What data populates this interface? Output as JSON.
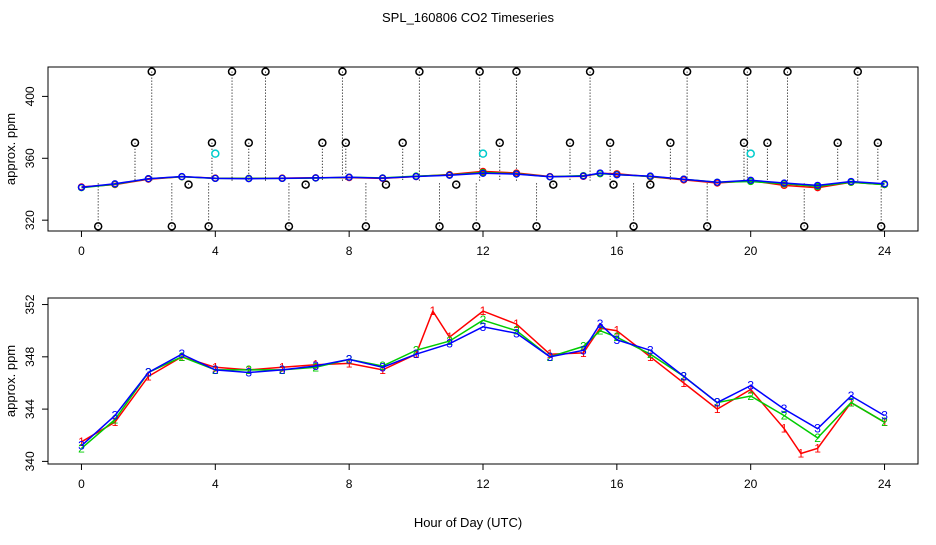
{
  "chart_data": [
    {
      "type": "scatter",
      "title": "SPL_160806  CO2 Timeseries",
      "ylabel": "approx. ppm",
      "xlabel": "",
      "xlim": [
        -1,
        25
      ],
      "ylim": [
        313,
        419
      ],
      "xticks": [
        0,
        4,
        8,
        12,
        16,
        20,
        24
      ],
      "yticks": [
        320,
        360,
        400
      ],
      "series": [
        {
          "name": "1",
          "color": "#ff0000",
          "points": [
            [
              0.0,
              341.5
            ],
            [
              1.0,
              343.0
            ],
            [
              2.0,
              346.5
            ],
            [
              3.0,
              348.0
            ],
            [
              4.0,
              347.2
            ],
            [
              5.0,
              347.0
            ],
            [
              6.0,
              347.2
            ],
            [
              7.0,
              347.4
            ],
            [
              8.0,
              347.5
            ],
            [
              9.0,
              347.0
            ],
            [
              10.0,
              348.2
            ],
            [
              11.0,
              349.5
            ],
            [
              12.0,
              351.5
            ],
            [
              13.0,
              350.5
            ],
            [
              14.0,
              348.2
            ],
            [
              15.0,
              348.3
            ],
            [
              15.5,
              350.2
            ],
            [
              16.0,
              350.0
            ],
            [
              17.0,
              348.0
            ],
            [
              18.0,
              346.0
            ],
            [
              19.0,
              344.0
            ],
            [
              20.0,
              345.5
            ],
            [
              21.0,
              342.5
            ],
            [
              22.0,
              341.0
            ],
            [
              23.0,
              344.5
            ],
            [
              24.0,
              343.0
            ]
          ]
        },
        {
          "name": "2",
          "color": "#00cc00",
          "points": [
            [
              0.0,
              341.0
            ],
            [
              1.0,
              343.2
            ],
            [
              2.0,
              346.8
            ],
            [
              3.0,
              348.0
            ],
            [
              4.0,
              347.0
            ],
            [
              5.0,
              347.0
            ],
            [
              6.0,
              347.0
            ],
            [
              7.0,
              347.2
            ],
            [
              8.0,
              347.8
            ],
            [
              9.0,
              347.3
            ],
            [
              10.0,
              348.5
            ],
            [
              11.0,
              349.2
            ],
            [
              12.0,
              350.8
            ],
            [
              13.0,
              350.0
            ],
            [
              14.0,
              348.0
            ],
            [
              15.0,
              348.8
            ],
            [
              15.5,
              350.0
            ],
            [
              16.0,
              349.5
            ],
            [
              17.0,
              348.2
            ],
            [
              18.0,
              346.5
            ],
            [
              19.0,
              344.5
            ],
            [
              20.0,
              345.0
            ],
            [
              21.0,
              343.5
            ],
            [
              22.0,
              341.8
            ],
            [
              23.0,
              344.5
            ],
            [
              24.0,
              343.0
            ]
          ]
        },
        {
          "name": "3",
          "color": "#0000ff",
          "points": [
            [
              0.0,
              341.2
            ],
            [
              1.0,
              343.5
            ],
            [
              2.0,
              346.8
            ],
            [
              3.0,
              348.2
            ],
            [
              4.0,
              347.0
            ],
            [
              5.0,
              346.8
            ],
            [
              6.0,
              347.0
            ],
            [
              7.0,
              347.3
            ],
            [
              8.0,
              347.8
            ],
            [
              9.0,
              347.2
            ],
            [
              10.0,
              348.2
            ],
            [
              11.0,
              349.0
            ],
            [
              12.0,
              350.3
            ],
            [
              13.0,
              349.8
            ],
            [
              14.0,
              348.0
            ],
            [
              15.0,
              348.5
            ],
            [
              15.5,
              350.5
            ],
            [
              16.0,
              349.3
            ],
            [
              17.0,
              348.5
            ],
            [
              18.0,
              346.5
            ],
            [
              19.0,
              344.5
            ],
            [
              20.0,
              345.8
            ],
            [
              21.0,
              344.0
            ],
            [
              22.0,
              342.5
            ],
            [
              23.0,
              345.0
            ],
            [
              24.0,
              343.5
            ]
          ]
        }
      ],
      "outliers": {
        "color": "#000000",
        "x": [
          0.5,
          1.6,
          2.1,
          2.7,
          3.2,
          3.8,
          3.9,
          4.5,
          5.0,
          5.5,
          6.2,
          6.7,
          7.2,
          7.8,
          7.9,
          8.5,
          9.1,
          9.6,
          10.1,
          10.7,
          11.2,
          11.8,
          11.9,
          12.5,
          13.0,
          13.6,
          14.1,
          14.6,
          15.2,
          15.8,
          15.9,
          16.5,
          17.0,
          17.6,
          18.1,
          18.7,
          19.8,
          19.9,
          20.5,
          21.1,
          21.6,
          22.6,
          23.2,
          23.8,
          23.9
        ],
        "y": [
          316,
          370,
          416,
          316,
          343,
          316,
          370,
          416,
          370,
          416,
          316,
          343,
          370,
          416,
          370,
          316,
          343,
          370,
          416,
          316,
          343,
          316,
          416,
          370,
          416,
          316,
          343,
          370,
          416,
          370,
          343,
          316,
          343,
          370,
          416,
          316,
          370,
          416,
          370,
          416,
          316,
          370,
          416,
          370,
          316
        ]
      },
      "flagged": {
        "color": "#00cccc",
        "x": [
          4.0,
          12.0,
          20.0
        ],
        "y": [
          363,
          363,
          363
        ]
      }
    },
    {
      "type": "scatter",
      "title": "",
      "ylabel": "approx. ppm",
      "xlabel": "Hour of Day (UTC)",
      "xlim": [
        -1,
        25
      ],
      "ylim": [
        339.8,
        352.5
      ],
      "xticks": [
        0,
        4,
        8,
        12,
        16,
        20,
        24
      ],
      "yticks": [
        340,
        344,
        348,
        352
      ],
      "series_marker_labels": [
        "1",
        "2",
        "3"
      ],
      "series": [
        {
          "name": "1",
          "color": "#ff0000",
          "points": [
            [
              0.0,
              341.5
            ],
            [
              1.0,
              343.0
            ],
            [
              2.0,
              346.5
            ],
            [
              3.0,
              348.0
            ],
            [
              4.0,
              347.2
            ],
            [
              5.0,
              347.0
            ],
            [
              6.0,
              347.2
            ],
            [
              7.0,
              347.4
            ],
            [
              8.0,
              347.5
            ],
            [
              9.0,
              347.0
            ],
            [
              10.0,
              348.2
            ],
            [
              10.5,
              351.5
            ],
            [
              11.0,
              349.5
            ],
            [
              12.0,
              351.5
            ],
            [
              13.0,
              350.5
            ],
            [
              14.0,
              348.2
            ],
            [
              15.0,
              348.3
            ],
            [
              15.5,
              350.2
            ],
            [
              16.0,
              350.0
            ],
            [
              17.0,
              348.0
            ],
            [
              18.0,
              346.0
            ],
            [
              19.0,
              344.0
            ],
            [
              20.0,
              345.5
            ],
            [
              21.0,
              342.5
            ],
            [
              21.5,
              340.6
            ],
            [
              22.0,
              341.0
            ],
            [
              23.0,
              344.5
            ],
            [
              24.0,
              343.0
            ]
          ]
        },
        {
          "name": "2",
          "color": "#00cc00",
          "points": [
            [
              0.0,
              341.0
            ],
            [
              1.0,
              343.2
            ],
            [
              2.0,
              346.8
            ],
            [
              3.0,
              348.0
            ],
            [
              4.0,
              347.0
            ],
            [
              5.0,
              347.0
            ],
            [
              6.0,
              347.0
            ],
            [
              7.0,
              347.2
            ],
            [
              8.0,
              347.8
            ],
            [
              9.0,
              347.3
            ],
            [
              10.0,
              348.5
            ],
            [
              11.0,
              349.2
            ],
            [
              12.0,
              350.8
            ],
            [
              13.0,
              350.0
            ],
            [
              14.0,
              348.0
            ],
            [
              15.0,
              348.8
            ],
            [
              15.5,
              350.0
            ],
            [
              16.0,
              349.5
            ],
            [
              17.0,
              348.2
            ],
            [
              18.0,
              346.5
            ],
            [
              19.0,
              344.5
            ],
            [
              20.0,
              345.0
            ],
            [
              21.0,
              343.5
            ],
            [
              22.0,
              341.8
            ],
            [
              23.0,
              344.5
            ],
            [
              24.0,
              343.0
            ]
          ]
        },
        {
          "name": "3",
          "color": "#0000ff",
          "points": [
            [
              0.0,
              341.2
            ],
            [
              1.0,
              343.5
            ],
            [
              2.0,
              346.8
            ],
            [
              3.0,
              348.2
            ],
            [
              4.0,
              347.0
            ],
            [
              5.0,
              346.8
            ],
            [
              6.0,
              347.0
            ],
            [
              7.0,
              347.3
            ],
            [
              8.0,
              347.8
            ],
            [
              9.0,
              347.2
            ],
            [
              10.0,
              348.2
            ],
            [
              11.0,
              349.0
            ],
            [
              12.0,
              350.3
            ],
            [
              13.0,
              349.8
            ],
            [
              14.0,
              348.0
            ],
            [
              15.0,
              348.5
            ],
            [
              15.5,
              350.5
            ],
            [
              16.0,
              349.3
            ],
            [
              17.0,
              348.5
            ],
            [
              18.0,
              346.5
            ],
            [
              19.0,
              344.5
            ],
            [
              20.0,
              345.8
            ],
            [
              21.0,
              344.0
            ],
            [
              22.0,
              342.5
            ],
            [
              23.0,
              345.0
            ],
            [
              24.0,
              343.5
            ]
          ]
        }
      ]
    }
  ]
}
